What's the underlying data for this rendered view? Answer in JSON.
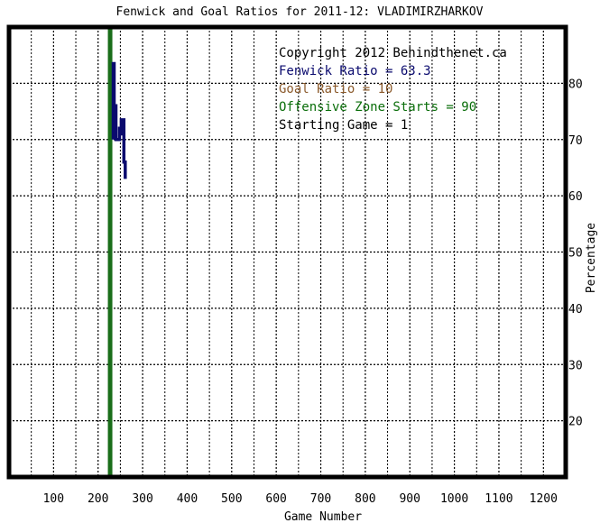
{
  "chart_data": {
    "type": "line",
    "title": "Fenwick and Goal Ratios for 2011-12: VLADIMIRZHARKOV",
    "xlabel": "Game Number",
    "ylabel": "Percentage",
    "xlim": [
      0,
      1250
    ],
    "ylim": [
      10,
      90
    ],
    "x_ticks": [
      100,
      200,
      300,
      400,
      500,
      600,
      700,
      800,
      900,
      1000,
      1100,
      1200
    ],
    "y_ticks": [
      20,
      30,
      40,
      50,
      60,
      70,
      80
    ],
    "grid": true,
    "annotations": [
      {
        "text": "Copyright 2012 Behindthenet.ca",
        "color": "#000000"
      },
      {
        "text": "Fenwick Ratio = 63.3",
        "color": "#0a0a6e"
      },
      {
        "text": "Goal Ratio = 10",
        "color": "#8b5a2b"
      },
      {
        "text": "Offensive Zone Starts = 90",
        "color": "#0a6e0a"
      },
      {
        "text": "Starting Game = 1",
        "color": "#000000"
      }
    ],
    "series": [
      {
        "color": "#0a0a6e",
        "x": [
          234,
          234,
          236,
          236,
          240,
          240,
          248,
          248,
          252,
          252,
          254,
          254,
          256,
          256,
          258,
          258,
          261,
          261
        ],
        "y": [
          70,
          83.5,
          83.5,
          76,
          76,
          70,
          70,
          72,
          72,
          73.5,
          73.5,
          71,
          71,
          73.5,
          73.5,
          66,
          66,
          63
        ]
      }
    ],
    "vertical_line": {
      "x": 227,
      "color": "#1a6e1a"
    }
  }
}
